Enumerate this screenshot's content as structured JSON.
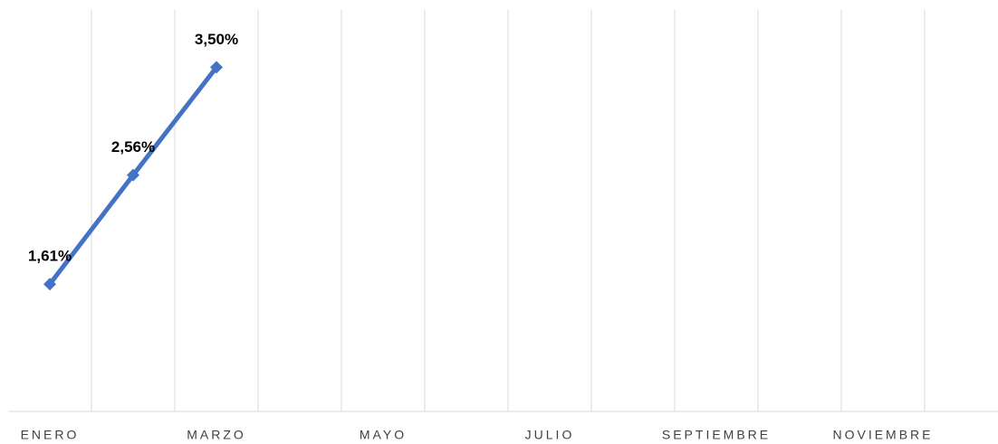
{
  "chart_data": {
    "type": "line",
    "categories": [
      "ENERO",
      null,
      "MARZO",
      null,
      "MAYO",
      null,
      "JULIO",
      null,
      "SEPTIEMBRE",
      null,
      "NOVIEMBRE",
      null
    ],
    "series": [
      {
        "color": "#4472c4",
        "values": [
          1.61,
          2.56,
          3.5,
          null,
          null,
          null,
          null,
          null,
          null,
          null,
          null,
          null
        ],
        "value_labels": [
          "1,61%",
          "2,56%",
          "3,50%",
          null,
          null,
          null,
          null,
          null,
          null,
          null,
          null,
          null
        ]
      }
    ],
    "ylim": [
      0.5,
      4
    ],
    "grid": true
  }
}
